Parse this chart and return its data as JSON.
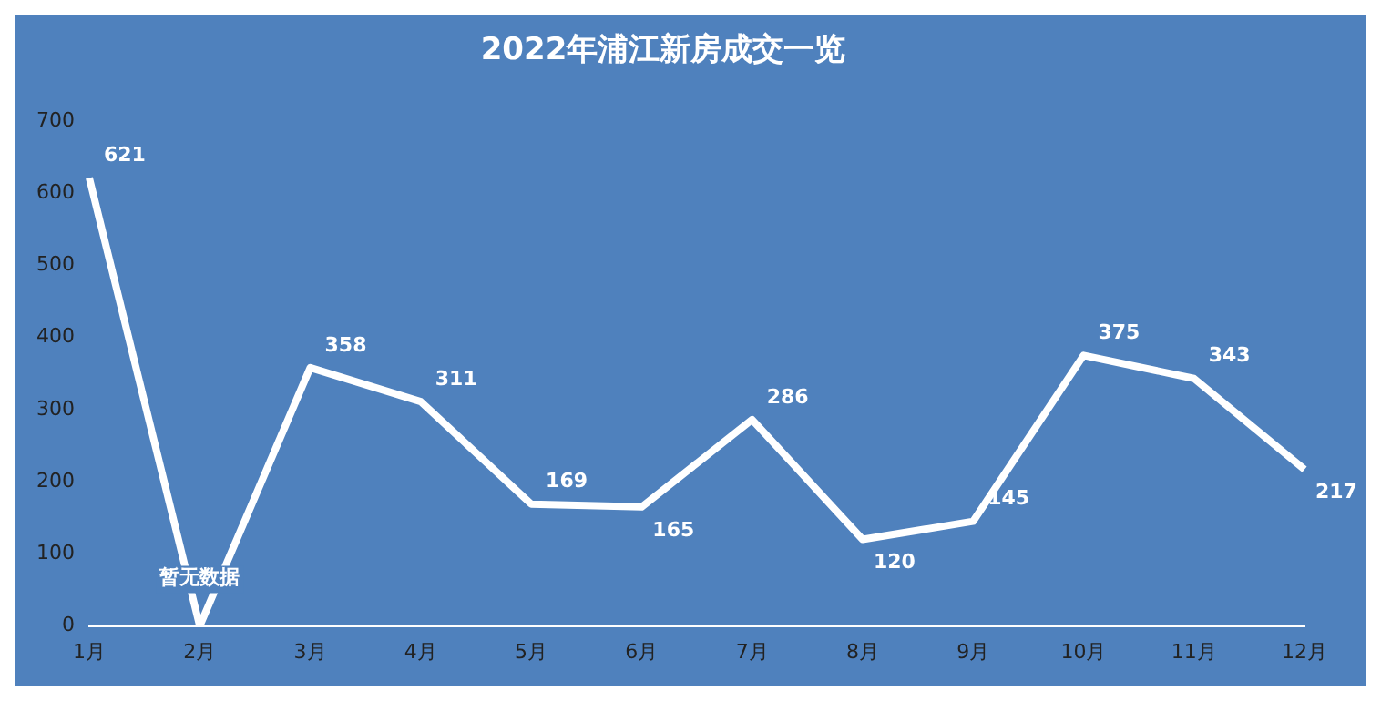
{
  "chart_data": {
    "type": "line",
    "title": "2022年浦江新房成交一览",
    "categories": [
      "1月",
      "2月",
      "3月",
      "4月",
      "5月",
      "6月",
      "7月",
      "8月",
      "9月",
      "10月",
      "11月",
      "12月"
    ],
    "series": [
      {
        "color": "#ffffff",
        "values": [
          621,
          0,
          358,
          311,
          169,
          165,
          286,
          120,
          145,
          375,
          343,
          217
        ],
        "value_labels": [
          "621",
          "暂无数据",
          "358",
          "311",
          "169",
          "165",
          "286",
          "120",
          "145",
          "375",
          "343",
          "217"
        ]
      }
    ],
    "ylim": [
      0,
      700
    ],
    "yticks": [
      0,
      100,
      200,
      300,
      400,
      500,
      600,
      700
    ],
    "grid": false,
    "legend": false,
    "marker": "none",
    "line_style": "solid"
  }
}
